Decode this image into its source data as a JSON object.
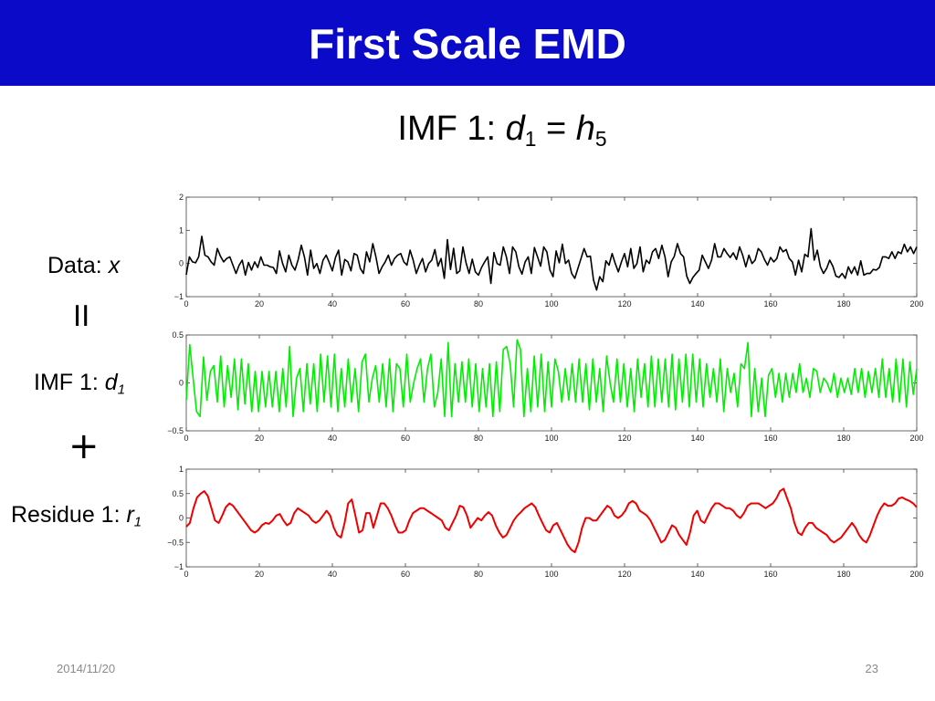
{
  "slide": {
    "title": "First Scale EMD",
    "subtitle": {
      "prefix": "IMF 1: ",
      "d": "d",
      "d_sub": "1",
      "eq": " = ",
      "h": "h",
      "h_sub": "5"
    },
    "footer_date": "2014/11/20",
    "page_number": "23"
  },
  "labels": {
    "data": {
      "text": "Data: ",
      "var": "x"
    },
    "equals_symbol": "II",
    "imf": {
      "text": "IMF 1: ",
      "var": "d",
      "sub": "1"
    },
    "plus_symbol": "+",
    "residue": {
      "text": "Residue 1: ",
      "var": "r",
      "sub": "1"
    }
  },
  "colors": {
    "title_bar": "#0a0ac8",
    "data_series": "#000000",
    "imf_series": "#00ee00",
    "residue_series": "#ee0000"
  },
  "chart_data": [
    {
      "type": "line",
      "xlim": [
        0,
        200
      ],
      "ylim": [
        -1,
        2
      ],
      "x_ticks": [
        0,
        20,
        40,
        60,
        80,
        100,
        120,
        140,
        160,
        180,
        200
      ],
      "y_ticks": [
        -1,
        0,
        1,
        2
      ],
      "y_tick_labels": [
        "−1",
        "0",
        "1",
        "2"
      ],
      "grid": false,
      "series": [
        {
          "color": "#000000",
          "y": [
            -0.34,
            0.2,
            0.05,
            0.02,
            0.2,
            0.82,
            0.25,
            0.2,
            0.05,
            -0.05,
            0.45,
            0.22,
            0.05,
            0.15,
            0.2,
            -0.05,
            -0.3,
            -0.05,
            0.1,
            -0.35,
            0.03,
            -0.2,
            0.05,
            -0.12,
            0.2,
            -0.05,
            -0.05,
            -0.1,
            -0.12,
            -0.3,
            0.38,
            0.0,
            -0.25,
            0.25,
            -0.05,
            -0.2,
            0.12,
            0.55,
            0.2,
            -0.35,
            0.4,
            -0.15,
            0.0,
            -0.3,
            0.1,
            0.25,
            0.03,
            -0.22,
            0.18,
            0.4,
            -0.35,
            0.12,
            0.05,
            -0.22,
            0.3,
            0.25,
            -0.15,
            -0.3,
            0.35,
            0.05,
            0.6,
            0.2,
            -0.3,
            -0.1,
            0.05,
            0.25,
            -0.05,
            0.15,
            0.25,
            0.3,
            0.05,
            -0.05,
            0.4,
            0.1,
            -0.3,
            -0.05,
            0.15,
            -0.25,
            0.0,
            0.1,
            0.42,
            -0.08,
            0.15,
            -0.45,
            0.72,
            -0.18,
            0.46,
            -0.3,
            -0.22,
            0.5,
            0.02,
            -0.3,
            0.13,
            -0.25,
            -0.35,
            -0.12,
            0.05,
            0.2,
            -0.6,
            0.33,
            0.0,
            -0.05,
            0.5,
            0.2,
            -0.3,
            0.5,
            0.35,
            -0.1,
            -0.32,
            0.05,
            0.2,
            -0.3,
            0.48,
            0.2,
            -0.08,
            0.5,
            0.35,
            -0.2,
            -0.4,
            0.38,
            0.02,
            0.58,
            0.0,
            0.1,
            -0.3,
            -0.45,
            -0.15,
            0.15,
            0.45,
            0.2,
            0.22,
            -0.5,
            -0.8,
            -0.4,
            -0.55,
            0.08,
            -0.05,
            0.3,
            0.0,
            -0.25,
            0.05,
            0.3,
            -0.1,
            0.45,
            -0.15,
            0.0,
            0.5,
            -0.25,
            0.1,
            0.0,
            0.35,
            0.45,
            0.15,
            0.55,
            0.2,
            -0.4,
            0.05,
            0.22,
            0.6,
            0.3,
            0.2,
            -0.38,
            -0.6,
            -0.42,
            -0.3,
            -0.2,
            0.25,
            0.05,
            -0.15,
            0.1,
            0.6,
            0.2,
            0.2,
            0.45,
            0.3,
            0.18,
            0.32,
            0.12,
            0.5,
            0.25,
            -0.1,
            0.25,
            0.0,
            0.1,
            0.45,
            0.35,
            0.12,
            -0.05,
            0.18,
            0.05,
            0.15,
            0.5,
            0.35,
            0.42,
            0.15,
            0.05,
            -0.35,
            0.1,
            -0.25,
            0.28,
            0.2,
            1.05,
            0.1,
            0.4,
            -0.1,
            -0.3,
            -0.15,
            0.1,
            -0.08,
            -0.38,
            -0.42,
            -0.3,
            -0.45,
            -0.1,
            -0.3,
            -0.1,
            -0.35,
            0.08,
            -0.35,
            -0.3,
            -0.3,
            -0.18,
            -0.2,
            -0.12,
            0.2,
            0.2,
            0.15,
            0.35,
            0.15,
            0.35,
            0.3,
            0.58,
            0.35,
            0.5,
            0.3,
            0.5
          ]
        }
      ]
    },
    {
      "type": "line",
      "xlim": [
        0,
        200
      ],
      "ylim": [
        -0.5,
        0.5
      ],
      "x_ticks": [
        0,
        20,
        40,
        60,
        80,
        100,
        120,
        140,
        160,
        180,
        200
      ],
      "y_ticks": [
        -0.5,
        0,
        0.5
      ],
      "y_tick_labels": [
        "−0.5",
        "0",
        "0.5"
      ],
      "grid": false,
      "series": [
        {
          "color": "#00ee00",
          "y": [
            -0.18,
            0.4,
            0.05,
            -0.3,
            -0.35,
            0.27,
            -0.18,
            0.12,
            0.18,
            -0.2,
            0.28,
            -0.25,
            0.18,
            -0.15,
            0.25,
            -0.28,
            0.25,
            -0.22,
            0.2,
            -0.3,
            0.12,
            -0.3,
            0.12,
            -0.25,
            0.12,
            -0.25,
            0.12,
            -0.3,
            0.15,
            -0.25,
            0.38,
            -0.35,
            0.05,
            0.15,
            -0.3,
            0.2,
            -0.22,
            0.2,
            -0.3,
            0.3,
            -0.2,
            0.28,
            -0.25,
            0.3,
            -0.3,
            0.15,
            -0.25,
            0.25,
            -0.2,
            0.15,
            -0.3,
            0.22,
            0.3,
            -0.2,
            0.05,
            0.18,
            -0.2,
            0.2,
            -0.25,
            0.25,
            -0.3,
            0.2,
            0.15,
            -0.25,
            0.3,
            -0.2,
            0.0,
            0.15,
            0.25,
            -0.2,
            0.15,
            0.3,
            -0.25,
            -0.1,
            0.25,
            -0.35,
            0.42,
            -0.35,
            0.2,
            -0.2,
            0.22,
            -0.2,
            0.25,
            -0.25,
            0.2,
            -0.3,
            0.15,
            -0.25,
            0.2,
            -0.35,
            0.22,
            -0.3,
            0.35,
            0.38,
            0.2,
            -0.25,
            0.45,
            0.35,
            -0.35,
            0.15,
            -0.3,
            0.28,
            -0.25,
            0.3,
            -0.3,
            0.22,
            -0.25,
            0.25,
            0.12,
            -0.2,
            0.15,
            -0.18,
            0.2,
            -0.2,
            0.25,
            -0.2,
            0.2,
            -0.28,
            0.25,
            -0.2,
            0.15,
            -0.3,
            0.28,
            0.0,
            -0.2,
            0.25,
            -0.2,
            0.2,
            -0.25,
            0.15,
            -0.3,
            0.25,
            -0.15,
            0.2,
            -0.25,
            0.28,
            -0.25,
            0.25,
            -0.2,
            0.25,
            -0.25,
            0.3,
            -0.28,
            0.25,
            -0.2,
            0.3,
            -0.25,
            0.3,
            -0.2,
            0.25,
            -0.25,
            0.2,
            -0.15,
            0.15,
            -0.2,
            0.25,
            -0.3,
            0.15,
            -0.1,
            0.1,
            -0.25,
            0.2,
            0.15,
            0.42,
            -0.35,
            0.15,
            -0.3,
            0.05,
            -0.35,
            0.08,
            0.15,
            -0.15,
            0.1,
            -0.2,
            0.1,
            -0.15,
            0.1,
            -0.1,
            0.2,
            -0.1,
            0.05,
            -0.15,
            0.15,
            0.12,
            -0.1,
            0.05,
            0.0,
            -0.1,
            0.1,
            -0.15,
            0.05,
            -0.1,
            0.05,
            -0.12,
            0.15,
            -0.1,
            0.15,
            -0.15,
            0.12,
            -0.1,
            0.15,
            -0.15,
            0.25,
            -0.15,
            0.15,
            -0.2,
            0.25,
            -0.2,
            0.25,
            -0.25,
            0.22,
            -0.12,
            0.15
          ]
        }
      ]
    },
    {
      "type": "line",
      "xlim": [
        0,
        200
      ],
      "ylim": [
        -1,
        1
      ],
      "x_ticks": [
        0,
        20,
        40,
        60,
        80,
        100,
        120,
        140,
        160,
        180,
        200
      ],
      "y_ticks": [
        -1,
        -0.5,
        0,
        0.5,
        1
      ],
      "y_tick_labels": [
        "−1",
        "−0.5",
        "0",
        "0.5",
        "1"
      ],
      "grid": false,
      "series": [
        {
          "color": "#ee0000",
          "y": [
            -0.18,
            -0.1,
            0.2,
            0.42,
            0.5,
            0.55,
            0.45,
            0.2,
            -0.05,
            -0.1,
            0.05,
            0.22,
            0.3,
            0.25,
            0.15,
            0.05,
            -0.05,
            -0.15,
            -0.25,
            -0.3,
            -0.25,
            -0.15,
            -0.1,
            -0.12,
            -0.05,
            0.05,
            0.08,
            -0.05,
            -0.15,
            -0.1,
            0.1,
            0.2,
            0.15,
            0.1,
            0.05,
            -0.05,
            -0.1,
            -0.05,
            0.05,
            0.15,
            0.05,
            -0.2,
            -0.35,
            -0.4,
            -0.1,
            0.3,
            0.38,
            0.05,
            -0.3,
            -0.25,
            0.1,
            0.1,
            -0.2,
            0.05,
            0.3,
            0.3,
            0.2,
            0.05,
            -0.15,
            -0.3,
            -0.3,
            -0.25,
            -0.05,
            0.1,
            0.15,
            0.2,
            0.2,
            0.15,
            0.1,
            0.05,
            0.0,
            -0.05,
            -0.2,
            -0.25,
            -0.1,
            0.05,
            0.25,
            0.22,
            0.05,
            -0.2,
            -0.1,
            0.0,
            -0.05,
            0.05,
            0.12,
            0.05,
            -0.15,
            -0.3,
            -0.4,
            -0.35,
            -0.2,
            -0.05,
            0.05,
            0.12,
            0.2,
            0.25,
            0.3,
            0.22,
            0.05,
            -0.1,
            -0.25,
            -0.3,
            -0.15,
            -0.1,
            -0.25,
            -0.4,
            -0.55,
            -0.65,
            -0.7,
            -0.5,
            -0.2,
            0.0,
            0.0,
            -0.05,
            -0.05,
            0.05,
            0.15,
            0.25,
            0.2,
            0.05,
            0.0,
            0.05,
            0.15,
            0.3,
            0.35,
            0.3,
            0.15,
            0.1,
            0.05,
            -0.05,
            -0.2,
            -0.35,
            -0.5,
            -0.45,
            -0.3,
            -0.15,
            -0.2,
            -0.35,
            -0.45,
            -0.55,
            -0.3,
            0.05,
            0.15,
            -0.05,
            -0.1,
            0.05,
            0.2,
            0.3,
            0.3,
            0.25,
            0.2,
            0.2,
            0.15,
            0.05,
            0.0,
            0.1,
            0.25,
            0.3,
            0.3,
            0.3,
            0.25,
            0.2,
            0.25,
            0.3,
            0.4,
            0.55,
            0.6,
            0.4,
            0.2,
            -0.1,
            -0.3,
            -0.35,
            -0.2,
            -0.1,
            -0.1,
            -0.2,
            -0.25,
            -0.3,
            -0.35,
            -0.45,
            -0.5,
            -0.45,
            -0.4,
            -0.3,
            -0.2,
            -0.1,
            -0.2,
            -0.35,
            -0.45,
            -0.5,
            -0.35,
            -0.15,
            0.05,
            0.2,
            0.3,
            0.25,
            0.25,
            0.3,
            0.4,
            0.42,
            0.38,
            0.35,
            0.3,
            0.22
          ]
        }
      ]
    }
  ]
}
